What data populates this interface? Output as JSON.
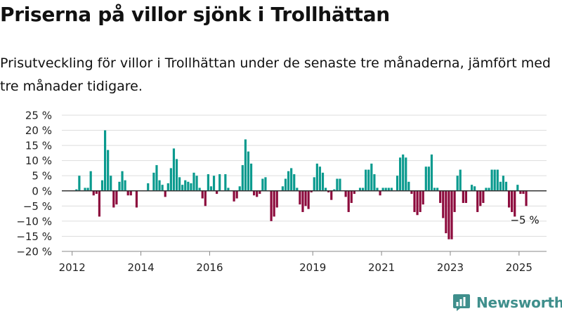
{
  "header": {
    "title": "Priserna på villor sjönk i Trollhättan",
    "subtitle": "Prisutveckling för villor i Trollhättan under de senaste tre månaderna, jämfört med tre månader tidigare."
  },
  "brand": {
    "name": "Newsworthy",
    "logo_icon": "newsworthy-logo-icon",
    "color": "#3f8f8c"
  },
  "colors": {
    "positive": "#0a9a8e",
    "negative": "#8c0a3c",
    "grid": "#dddddd",
    "zero_line": "#333333"
  },
  "chart_data": {
    "type": "bar",
    "unit": "%",
    "ylim": [
      -20,
      25
    ],
    "yticks": [
      25,
      20,
      15,
      10,
      5,
      0,
      -5,
      -10,
      -15,
      -20
    ],
    "ytick_labels": [
      "25 %",
      "20 %",
      "15 %",
      "10 %",
      "5 %",
      "0 %",
      "−5 %",
      "−10 %",
      "−15 %",
      "−20 %"
    ],
    "xlim": [
      2011.7,
      2025.8
    ],
    "xticks": [
      2012,
      2014,
      2016,
      2019,
      2021,
      2023,
      2025
    ],
    "xtick_labels": [
      "2012",
      "2014",
      "2016",
      "2019",
      "2021",
      "2023",
      "2025"
    ],
    "grid": "horizontal",
    "last_value_label": "−5 %",
    "start_month": "2012-01",
    "series": [
      {
        "frequency": "monthly",
        "values": [
          0,
          0.5,
          5,
          0,
          1,
          1,
          6.5,
          -1.5,
          -1,
          -8.5,
          3.5,
          20,
          13.5,
          5,
          -5.5,
          -4.5,
          3,
          6.5,
          3.5,
          -1.5,
          -1.5,
          0,
          -5.5,
          0,
          0,
          0,
          2.5,
          0,
          6,
          8.5,
          3.5,
          2,
          -2,
          2.5,
          7.5,
          14,
          10.5,
          4.5,
          2,
          3.5,
          3,
          2.5,
          6,
          5,
          1,
          -2.5,
          -5,
          5.5,
          1.5,
          5,
          -1,
          5.5,
          0,
          5.5,
          1,
          0,
          -3.5,
          -2.5,
          1.5,
          8.5,
          17,
          13,
          9,
          -1.5,
          -2,
          -1,
          4,
          4.5,
          0,
          -10,
          -8.5,
          -5.5,
          0,
          1.5,
          4,
          6.5,
          7.5,
          5.5,
          1,
          -4.5,
          -7,
          -5,
          -6,
          -0.5,
          4.5,
          9,
          8,
          6,
          1,
          -0.5,
          -3,
          0.5,
          4,
          4,
          0,
          -2,
          -7,
          -4,
          -1,
          0,
          1,
          1,
          7,
          7,
          9,
          5.5,
          1,
          -1.5,
          1,
          1,
          1,
          1,
          0,
          5,
          11,
          12,
          11,
          3,
          -1,
          -7,
          -8,
          -7,
          -4.5,
          8,
          8,
          12,
          1,
          1,
          -4,
          -9,
          -14,
          -16,
          -16,
          -7,
          5,
          7,
          -4,
          -4,
          0,
          2,
          1.5,
          -7,
          -5,
          -4,
          1,
          1,
          7,
          7,
          7,
          3,
          5,
          3,
          -5.5,
          -7,
          -8.5,
          2,
          -1,
          -1,
          -5
        ]
      }
    ]
  }
}
